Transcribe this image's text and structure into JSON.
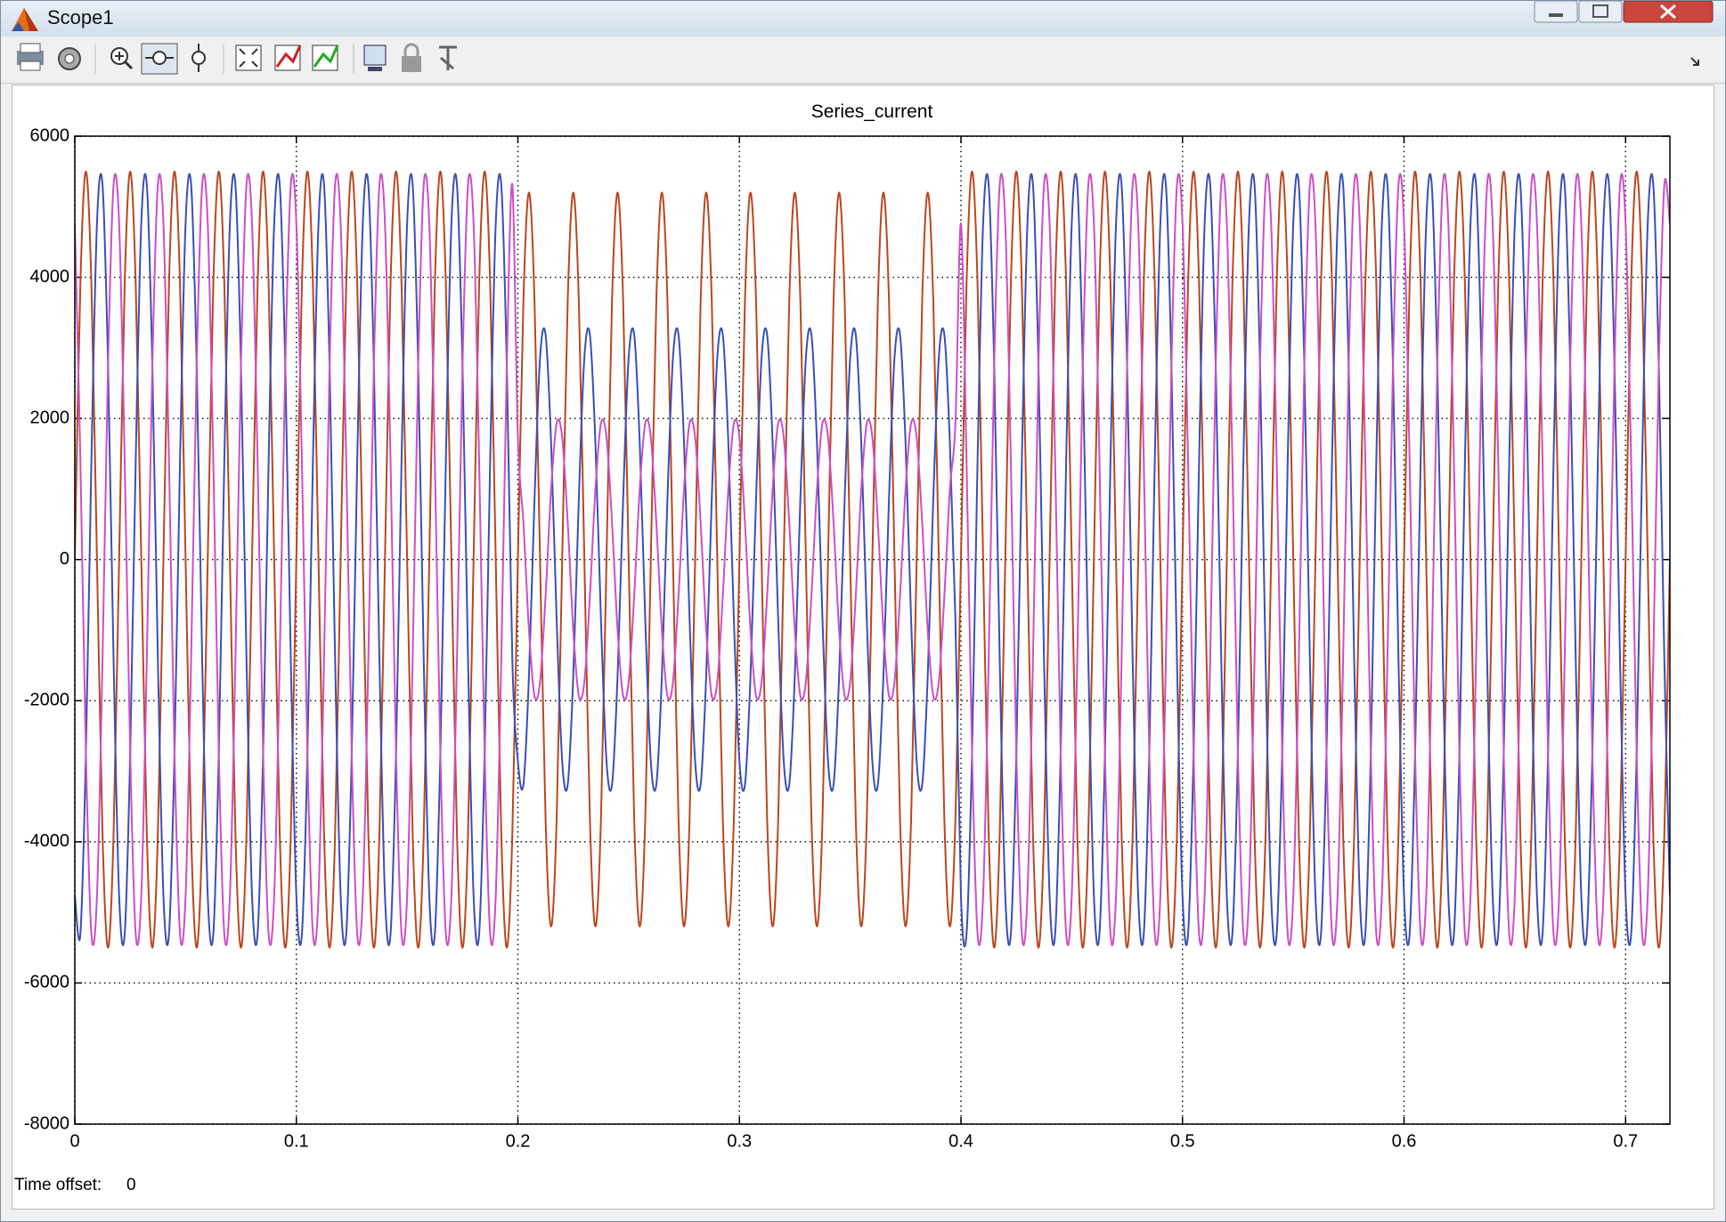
{
  "window": {
    "title": "Scope1"
  },
  "footer": {
    "label": "Time offset:",
    "value": "0"
  },
  "chart_data": {
    "type": "line",
    "title": "Series_current",
    "x": [
      0,
      0.0025,
      0.005,
      0.0075,
      0.01,
      0.0125,
      0.015,
      0.0175,
      0.02,
      0.0225,
      0.025,
      0.0275,
      0.03,
      0.0325,
      0.035,
      0.0375,
      0.04,
      0.0425,
      0.045,
      0.0475,
      0.05,
      0.0525,
      0.055,
      0.0575,
      0.06,
      0.0625,
      0.065,
      0.0675,
      0.07,
      0.0725,
      0.075,
      0.0775,
      0.08,
      0.0825,
      0.085,
      0.0875,
      0.09,
      0.0925,
      0.095,
      0.0975,
      0.1,
      0.1025,
      0.105,
      0.1075,
      0.11,
      0.1125,
      0.115,
      0.1175,
      0.12,
      0.1225,
      0.125,
      0.1275,
      0.13,
      0.1325,
      0.135,
      0.1375,
      0.14,
      0.1425,
      0.145,
      0.1475,
      0.15,
      0.1525,
      0.155,
      0.1575,
      0.16,
      0.1625,
      0.165,
      0.1675,
      0.17,
      0.1725,
      0.175,
      0.1775,
      0.18,
      0.1825,
      0.185,
      0.1875,
      0.19,
      0.1925,
      0.195,
      0.1975,
      0.2,
      0.2025,
      0.205,
      0.2075,
      0.21,
      0.2125,
      0.215,
      0.2175,
      0.22,
      0.2225,
      0.225,
      0.2275,
      0.23,
      0.2325,
      0.235,
      0.2375,
      0.24,
      0.2425,
      0.245,
      0.2475,
      0.25,
      0.2525,
      0.255,
      0.2575,
      0.26,
      0.2625,
      0.265,
      0.2675,
      0.27,
      0.2725,
      0.275,
      0.2775,
      0.28,
      0.2825,
      0.285,
      0.2875,
      0.29,
      0.2925,
      0.295,
      0.2975,
      0.3,
      0.3025,
      0.305,
      0.3075,
      0.31,
      0.3125,
      0.315,
      0.3175,
      0.32,
      0.3225,
      0.325,
      0.3275,
      0.33,
      0.3325,
      0.335,
      0.3375,
      0.34,
      0.3425,
      0.345,
      0.3475,
      0.35,
      0.3525,
      0.355,
      0.3575,
      0.36,
      0.3625,
      0.365,
      0.3675,
      0.37,
      0.3725,
      0.375,
      0.3775,
      0.38,
      0.3825,
      0.385,
      0.3875,
      0.39,
      0.3925,
      0.395,
      0.3975,
      0.4,
      0.4025,
      0.405,
      0.4075,
      0.41,
      0.4125,
      0.415,
      0.4175,
      0.42,
      0.4225,
      0.425,
      0.4275,
      0.43,
      0.4325,
      0.435,
      0.4375,
      0.44,
      0.4425,
      0.445,
      0.4475,
      0.45,
      0.4525,
      0.455,
      0.4575,
      0.46,
      0.4625,
      0.465,
      0.4675,
      0.47,
      0.4725,
      0.475,
      0.4775,
      0.48,
      0.4825,
      0.485,
      0.4875,
      0.49,
      0.4925,
      0.495,
      0.4975,
      0.5,
      0.5025,
      0.505,
      0.5075,
      0.51,
      0.5125,
      0.515,
      0.5175,
      0.52,
      0.5225,
      0.525,
      0.5275,
      0.53,
      0.5325,
      0.535,
      0.5375,
      0.54,
      0.5425,
      0.545,
      0.5475,
      0.55,
      0.5525,
      0.555,
      0.5575,
      0.56,
      0.5625,
      0.565,
      0.5675,
      0.57,
      0.5725,
      0.575,
      0.5775,
      0.58,
      0.5825,
      0.585,
      0.5875,
      0.59,
      0.5925,
      0.595,
      0.5975,
      0.6,
      0.6025,
      0.605,
      0.6075,
      0.61,
      0.6125,
      0.615,
      0.6175,
      0.62,
      0.6225,
      0.625,
      0.6275,
      0.63,
      0.6325,
      0.635,
      0.6375,
      0.64,
      0.6425,
      0.645,
      0.6475,
      0.65,
      0.6525,
      0.655,
      0.6575,
      0.66,
      0.6625,
      0.665,
      0.6675,
      0.67,
      0.6725,
      0.675,
      0.6775,
      0.68,
      0.6825,
      0.685,
      0.6875,
      0.69,
      0.6925,
      0.695,
      0.6975,
      0.7,
      0.7025,
      0.705,
      0.7075,
      0.71,
      0.7125,
      0.715,
      0.7175,
      0.72
    ],
    "series": [
      {
        "color": "#b8481f",
        "values": [
          0,
          3889,
          5500,
          3889,
          0,
          -3889,
          -5500,
          -3889,
          0,
          3889,
          5500,
          3889,
          0,
          -3889,
          -5500,
          -3889,
          0,
          3889,
          5500,
          3889,
          0,
          -3889,
          -5500,
          -3889,
          0,
          3889,
          5500,
          3889,
          0,
          -3889,
          -5500,
          -3889,
          0,
          3889,
          5500,
          3889,
          0,
          -3889,
          -5500,
          -3889,
          0,
          3889,
          5500,
          3889,
          0,
          -3889,
          -5500,
          -3889,
          0,
          3889,
          5500,
          3889,
          0,
          -3889,
          -5500,
          -3889,
          0,
          3889,
          5500,
          3889,
          0,
          -3889,
          -5500,
          -3889,
          0,
          3889,
          5500,
          3889,
          0,
          -3889,
          -5500,
          -3889,
          0,
          3889,
          5500,
          3889,
          0,
          -3889,
          -5500,
          -3889,
          0,
          3677,
          5200,
          3677,
          0,
          -3677,
          -5200,
          -3677,
          0,
          3677,
          5200,
          3677,
          0,
          -3677,
          -5200,
          -3677,
          0,
          3677,
          5200,
          3677,
          0,
          -3677,
          -5200,
          -3677,
          0,
          3677,
          5200,
          3677,
          0,
          -3677,
          -5200,
          -3677,
          0,
          3677,
          5200,
          3677,
          0,
          -3677,
          -5200,
          -3677,
          0,
          3677,
          5200,
          3677,
          0,
          -3677,
          -5200,
          -3677,
          0,
          3677,
          5200,
          3677,
          0,
          -3677,
          -5200,
          -3677,
          0,
          3677,
          5200,
          3677,
          0,
          -3677,
          -5200,
          -3677,
          0,
          3677,
          5200,
          3677,
          0,
          -3677,
          -5200,
          -3677,
          0,
          3677,
          5200,
          3677,
          0,
          -3677,
          -5200,
          -3677,
          0,
          3889,
          5500,
          3889,
          0,
          -3889,
          -5500,
          -3889,
          0,
          3889,
          5500,
          3889,
          0,
          -3889,
          -5500,
          -3889,
          0,
          3889,
          5500,
          3889,
          0,
          -3889,
          -5500,
          -3889,
          0,
          3889,
          5500,
          3889,
          0,
          -3889,
          -5500,
          -3889,
          0,
          3889,
          5500,
          3889,
          0,
          -3889,
          -5500,
          -3889,
          0,
          3889,
          5500,
          3889,
          0,
          -3889,
          -5500,
          -3889,
          0,
          3889,
          5500,
          3889,
          0,
          -3889,
          -5500,
          -3889,
          0,
          3889,
          5500,
          3889,
          0,
          -3889,
          -5500,
          -3889,
          0,
          3889,
          5500,
          3889,
          0,
          -3889,
          -5500,
          -3889,
          0,
          3889,
          5500,
          3889,
          0,
          -3889,
          -5500,
          -3889,
          0,
          3889,
          5500,
          3889,
          0,
          -3889,
          -5500,
          -3889,
          0,
          3889,
          5500,
          3889,
          0,
          -3889,
          -5500,
          -3889,
          0,
          3889,
          5500,
          3889,
          0,
          -3889,
          -5500,
          -3889,
          0,
          3889,
          5500,
          3889,
          0,
          -3889,
          -5500,
          -3889,
          0,
          3889,
          5500,
          3889,
          0,
          -3889,
          -5500,
          -3889,
          0,
          3889,
          5500,
          3889,
          0,
          -3889,
          -5500,
          -3889,
          0
        ]
      },
      {
        "color": "#3b4fb5",
        "values": [
          -4763,
          -5313,
          -2750,
          1424,
          4763,
          5313,
          2750,
          -1424,
          -4763,
          -5313,
          -2750,
          1424,
          4763,
          5313,
          2750,
          -1424,
          -4763,
          -5313,
          -2750,
          1424,
          4763,
          5313,
          2750,
          -1424,
          -4763,
          -5313,
          -2750,
          1424,
          4763,
          5313,
          2750,
          -1424,
          -4763,
          -5313,
          -2750,
          1424,
          4763,
          5313,
          2750,
          -1424,
          -4763,
          -5313,
          -2750,
          1424,
          4763,
          5313,
          2750,
          -1424,
          -4763,
          -5313,
          -2750,
          1424,
          4763,
          5313,
          2750,
          -1424,
          -4763,
          -5313,
          -2750,
          1424,
          4763,
          5313,
          2750,
          -1424,
          -4763,
          -5313,
          -2750,
          1424,
          4763,
          5313,
          2750,
          -1424,
          -4763,
          -5313,
          -2750,
          1424,
          4763,
          5313,
          2750,
          -1424,
          -2858,
          -3188,
          -1650,
          855,
          2858,
          3188,
          1650,
          -855,
          -2858,
          -3188,
          -1650,
          855,
          2858,
          3188,
          1650,
          -855,
          -2858,
          -3188,
          -1650,
          855,
          2858,
          3188,
          1650,
          -855,
          -2858,
          -3188,
          -1650,
          855,
          2858,
          3188,
          1650,
          -855,
          -2858,
          -3188,
          -1650,
          855,
          2858,
          3188,
          1650,
          -855,
          -2858,
          -3188,
          -1650,
          855,
          2858,
          3188,
          1650,
          -855,
          -2858,
          -3188,
          -1650,
          855,
          2858,
          3188,
          1650,
          -855,
          -2858,
          -3188,
          -1650,
          855,
          2858,
          3188,
          1650,
          -855,
          -2858,
          -3188,
          -1650,
          855,
          2858,
          3188,
          1650,
          -855,
          -2858,
          -3188,
          -1650,
          855,
          2858,
          3188,
          1650,
          -855,
          -4763,
          -5313,
          -2750,
          1424,
          4763,
          5313,
          2750,
          -1424,
          -4763,
          -5313,
          -2750,
          1424,
          4763,
          5313,
          2750,
          -1424,
          -4763,
          -5313,
          -2750,
          1424,
          4763,
          5313,
          2750,
          -1424,
          -4763,
          -5313,
          -2750,
          1424,
          4763,
          5313,
          2750,
          -1424,
          -4763,
          -5313,
          -2750,
          1424,
          4763,
          5313,
          2750,
          -1424,
          -4763,
          -5313,
          -2750,
          1424,
          4763,
          5313,
          2750,
          -1424,
          -4763,
          -5313,
          -2750,
          1424,
          4763,
          5313,
          2750,
          -1424,
          -4763,
          -5313,
          -2750,
          1424,
          4763,
          5313,
          2750,
          -1424,
          -4763,
          -5313,
          -2750,
          1424,
          4763,
          5313,
          2750,
          -1424,
          -4763,
          -5313,
          -2750,
          1424,
          4763,
          5313,
          2750,
          -1424,
          -4763,
          -5313,
          -2750,
          1424,
          4763,
          5313,
          2750,
          -1424,
          -4763,
          -5313,
          -2750,
          1424,
          4763,
          5313,
          2750,
          -1424,
          -4763,
          -5313,
          -2750,
          1424,
          4763,
          5313,
          2750,
          -1424,
          -4763,
          -5313,
          -2750,
          1424,
          4763,
          5313,
          2750,
          -1424,
          -4763,
          -5313,
          -2750,
          1424,
          4763,
          5313,
          2750,
          -1424,
          -4763,
          -5313,
          -2750,
          1424,
          4763,
          5313,
          2750,
          -1424,
          -4763
        ]
      },
      {
        "color": "#cc4fc4",
        "values": [
          4763,
          1424,
          -2750,
          -5313,
          -4763,
          -1424,
          2750,
          5313,
          4763,
          1424,
          -2750,
          -5313,
          -4763,
          -1424,
          2750,
          5313,
          4763,
          1424,
          -2750,
          -5313,
          -4763,
          -1424,
          2750,
          5313,
          4763,
          1424,
          -2750,
          -5313,
          -4763,
          -1424,
          2750,
          5313,
          4763,
          1424,
          -2750,
          -5313,
          -4763,
          -1424,
          2750,
          5313,
          4763,
          1424,
          -2750,
          -5313,
          -4763,
          -1424,
          2750,
          5313,
          4763,
          1424,
          -2750,
          -5313,
          -4763,
          -1424,
          2750,
          5313,
          4763,
          1424,
          -2750,
          -5313,
          -4763,
          -1424,
          2750,
          5313,
          4763,
          1424,
          -2750,
          -5313,
          -4763,
          -1424,
          2750,
          5313,
          4763,
          1424,
          -2750,
          -5313,
          -4763,
          -1424,
          2750,
          5313,
          1732,
          518,
          -1000,
          -1932,
          -1732,
          -518,
          1000,
          1932,
          1732,
          518,
          -1000,
          -1932,
          -1732,
          -518,
          1000,
          1932,
          1732,
          518,
          -1000,
          -1932,
          -1732,
          -518,
          1000,
          1932,
          1732,
          518,
          -1000,
          -1932,
          -1732,
          -518,
          1000,
          1932,
          1732,
          518,
          -1000,
          -1932,
          -1732,
          -518,
          1000,
          1932,
          1732,
          518,
          -1000,
          -1932,
          -1732,
          -518,
          1000,
          1932,
          1732,
          518,
          -1000,
          -1932,
          -1732,
          -518,
          1000,
          1932,
          1732,
          518,
          -1000,
          -1932,
          -1732,
          -518,
          1000,
          1932,
          1732,
          518,
          -1000,
          -1932,
          -1732,
          -518,
          1000,
          1932,
          1732,
          518,
          -1000,
          -1932,
          -1732,
          -518,
          1000,
          1932,
          4763,
          1424,
          -2750,
          -5313,
          -4763,
          -1424,
          2750,
          5313,
          4763,
          1424,
          -2750,
          -5313,
          -4763,
          -1424,
          2750,
          5313,
          4763,
          1424,
          -2750,
          -5313,
          -4763,
          -1424,
          2750,
          5313,
          4763,
          1424,
          -2750,
          -5313,
          -4763,
          -1424,
          2750,
          5313,
          4763,
          1424,
          -2750,
          -5313,
          -4763,
          -1424,
          2750,
          5313,
          4763,
          1424,
          -2750,
          -5313,
          -4763,
          -1424,
          2750,
          5313,
          4763,
          1424,
          -2750,
          -5313,
          -4763,
          -1424,
          2750,
          5313,
          4763,
          1424,
          -2750,
          -5313,
          -4763,
          -1424,
          2750,
          5313,
          4763,
          1424,
          -2750,
          -5313,
          -4763,
          -1424,
          2750,
          5313,
          4763,
          1424,
          -2750,
          -5313,
          -4763,
          -1424,
          2750,
          5313,
          4763,
          1424,
          -2750,
          -5313,
          -4763,
          -1424,
          2750,
          5313,
          4763,
          1424,
          -2750,
          -5313,
          -4763,
          -1424,
          2750,
          5313,
          4763,
          1424,
          -2750,
          -5313,
          -4763,
          -1424,
          2750,
          5313,
          4763,
          1424,
          -2750,
          -5313,
          -4763,
          -1424,
          2750,
          5313,
          4763,
          1424,
          -2750,
          -5313,
          -4763,
          -1424,
          2750,
          5313,
          4763,
          1424,
          -2750,
          -5313,
          -4763,
          -1424,
          2750,
          5313,
          4763
        ]
      }
    ],
    "xlim": [
      0,
      0.72
    ],
    "ylim": [
      -8000,
      6000
    ],
    "xticks": [
      0,
      0.1,
      0.2,
      0.3,
      0.4,
      0.5,
      0.6,
      0.7
    ],
    "yticks": [
      -8000,
      -6000,
      -4000,
      -2000,
      0,
      2000,
      4000,
      6000
    ],
    "grid": true
  }
}
